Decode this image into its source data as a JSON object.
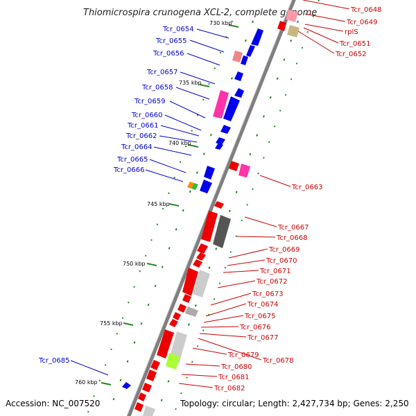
{
  "header": {
    "title": "Thiomicrospira crunogena XCL-2, complete genome"
  },
  "footer": {
    "accession": "Accession: NC_007520",
    "summary": "Topology: circular; Length: 2,427,734 bp; Genes: 2,250"
  },
  "scale": {
    "ticks": [
      {
        "label": "730 kbp"
      },
      {
        "label": "735 kbp"
      },
      {
        "label": "740 kbp"
      },
      {
        "label": "745 kbp"
      },
      {
        "label": "750 kbp"
      },
      {
        "label": "755 kbp"
      },
      {
        "label": "760 kbp"
      }
    ]
  },
  "colors": {
    "blue_genes": "#0000ee",
    "red_genes": "#ee0000",
    "pink_genes": "#ff33aa",
    "gray_genes": "#888888",
    "light_gray_genes": "#cccccc",
    "tan_gene": "#c8b880",
    "lime_gene": "#aaff33",
    "backbone": "#7f7f7f",
    "tick_marks": "#228822"
  },
  "labels": {
    "left": [
      "Tcr_0654",
      "Tcr_0655",
      "Tcr_0656",
      "Tcr_0657",
      "Tcr_0658",
      "Tcr_0659",
      "Tcr_0660",
      "Tcr_0661",
      "Tcr_0662",
      "Tcr_0664",
      "Tcr_0665",
      "Tcr_0666",
      "Tcr_0685"
    ],
    "right_top": [
      "Tcr_0648",
      "Tcr_0649",
      "rplS",
      "Tcr_0651",
      "Tcr_0652"
    ],
    "right": [
      "Tcr_0663",
      "Tcr_0667",
      "Tcr_0668",
      "Tcr_0669",
      "Tcr_0670",
      "Tcr_0671",
      "Tcr_0672",
      "Tcr_0673",
      "Tcr_0674",
      "Tcr_0675",
      "Tcr_0676",
      "Tcr_0677",
      "Tcr_0678",
      "Tcr_0679",
      "Tcr_0680",
      "Tcr_0681",
      "Tcr_0682"
    ]
  }
}
